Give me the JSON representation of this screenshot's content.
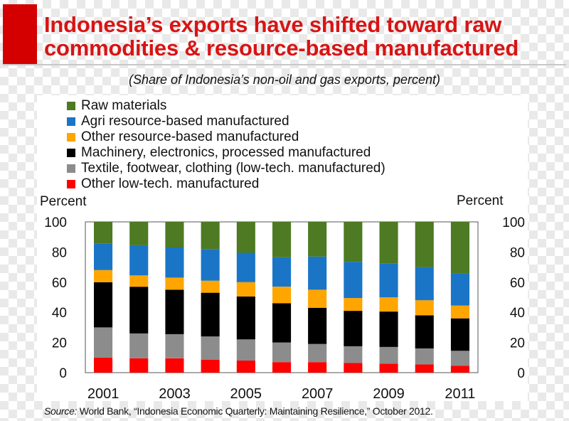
{
  "title": "Indonesia’s exports have shifted toward raw commodities & resource-based manufactured",
  "subtitle": "(Share of Indonesia’s non-oil and gas exports, percent)",
  "source": {
    "label": "Source:",
    "text": "World Bank, “Indonesia Economic Quarterly: Maintaining Resilience,” October 2012."
  },
  "chart_data": {
    "type": "bar",
    "stacked": true,
    "ylabel_left": "Percent",
    "ylabel_right": "Percent",
    "ylim": [
      0,
      100
    ],
    "y_ticks": [
      "0",
      "20",
      "40",
      "60",
      "80",
      "100"
    ],
    "grid": false,
    "legend_position": "top-left",
    "categories": [
      "2001",
      "2002",
      "2003",
      "2004",
      "2005",
      "2006",
      "2007",
      "2008",
      "2009",
      "2010",
      "2011"
    ],
    "x_tick_labels": [
      "2001",
      "",
      "2003",
      "",
      "2005",
      "",
      "2007",
      "",
      "2009",
      "",
      "2011"
    ],
    "series": [
      {
        "name": "Other low-tech. manufactured",
        "color": "#ff0000",
        "values": [
          10,
          9.5,
          9.5,
          8.5,
          8,
          7,
          7,
          6.5,
          6,
          5.5,
          4.5
        ]
      },
      {
        "name": "Textile, footwear, clothing (low-tech. manufactured)",
        "color": "#8c8c8c",
        "values": [
          20,
          16.5,
          16,
          15.5,
          14,
          13,
          12,
          11,
          11,
          10.5,
          10
        ]
      },
      {
        "name": "Machinery, electronics, processed manufactured",
        "color": "#000000",
        "values": [
          30,
          31,
          29.5,
          29,
          28.5,
          26,
          24,
          23.5,
          23.5,
          22,
          21.5
        ]
      },
      {
        "name": "Other resource-based manufactured",
        "color": "#ffa500",
        "values": [
          8,
          7.5,
          8,
          8,
          9.5,
          11,
          12,
          8.5,
          9.5,
          10,
          8.5
        ]
      },
      {
        "name": "Agri resource-based manufactured",
        "color": "#1a75c7",
        "values": [
          17.5,
          20,
          20,
          21,
          19.5,
          19.5,
          22,
          24,
          22.5,
          22,
          21.5
        ]
      },
      {
        "name": "Raw materials",
        "color": "#4d7a22",
        "values": [
          14.5,
          15.5,
          17,
          18,
          20.5,
          23.5,
          23,
          26.5,
          27.5,
          30,
          34
        ]
      }
    ],
    "legend_order": [
      "Raw materials",
      "Agri resource-based manufactured",
      "Other resource-based manufactured",
      "Machinery, electronics, processed manufactured",
      "Textile, footwear, clothing (low-tech. manufactured)",
      "Other low-tech. manufactured"
    ]
  }
}
